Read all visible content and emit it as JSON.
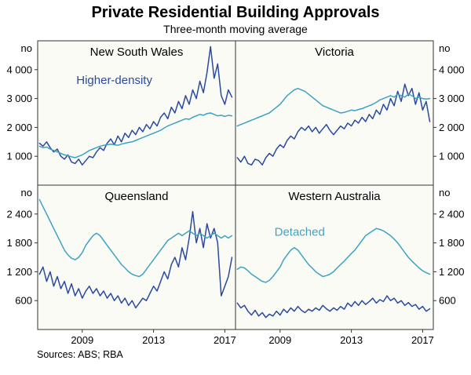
{
  "title": "Private Residential Building Approvals",
  "subtitle": "Three-month moving average",
  "sources": "Sources: ABS; RBA",
  "unit_label": "no",
  "colors": {
    "higher_density": "#2a4a9f",
    "detached": "#3da3c2",
    "axis": "#333333",
    "text": "#000000",
    "panel_bg": "#fbfbf5"
  },
  "chart_data": {
    "type": "line",
    "x_start": 2006.6,
    "x_step": 0.2,
    "x_range": [
      2006.5,
      2017.6
    ],
    "x_ticks": [
      2009,
      2013,
      2017
    ],
    "unit": "no",
    "legend": [
      "Higher-density",
      "Detached"
    ],
    "panels": [
      {
        "title": "New South Wales",
        "ylim": [
          0,
          5000
        ],
        "yticks": [
          1000,
          2000,
          3000,
          4000
        ],
        "annotation": {
          "text": "Higher-density",
          "x": 2010.8,
          "y": 3500,
          "color": "higher_density"
        },
        "series": [
          {
            "name": "Higher-density",
            "color": "higher_density",
            "values": [
              1450,
              1350,
              1500,
              1300,
              1150,
              1250,
              1000,
              900,
              1050,
              800,
              750,
              900,
              700,
              850,
              1000,
              950,
              1150,
              1300,
              1200,
              1450,
              1600,
              1400,
              1700,
              1500,
              1800,
              1650,
              1900,
              1750,
              2000,
              1850,
              2100,
              1950,
              2200,
              2050,
              2350,
              2500,
              2300,
              2700,
              2500,
              2900,
              2650,
              3100,
              2800,
              3300,
              3000,
              3600,
              3200,
              3900,
              4800,
              3700,
              4200,
              3100,
              2800,
              3300,
              3050
            ]
          },
          {
            "name": "Detached",
            "color": "detached",
            "values": [
              1350,
              1300,
              1320,
              1250,
              1200,
              1150,
              1100,
              1050,
              1020,
              980,
              950,
              1000,
              1050,
              1120,
              1200,
              1250,
              1300,
              1350,
              1380,
              1400,
              1420,
              1400,
              1380,
              1420,
              1450,
              1480,
              1500,
              1550,
              1600,
              1650,
              1700,
              1750,
              1800,
              1850,
              1900,
              1980,
              2050,
              2100,
              2150,
              2200,
              2250,
              2300,
              2280,
              2350,
              2400,
              2450,
              2420,
              2480,
              2500,
              2450,
              2400,
              2420,
              2380,
              2420,
              2400
            ]
          }
        ]
      },
      {
        "title": "Victoria",
        "ylim": [
          0,
          5000
        ],
        "yticks": [
          1000,
          2000,
          3000,
          4000
        ],
        "series": [
          {
            "name": "Higher-density",
            "color": "higher_density",
            "values": [
              950,
              800,
              1000,
              750,
              700,
              900,
              850,
              700,
              950,
              1100,
              1000,
              1250,
              1400,
              1300,
              1550,
              1700,
              1600,
              1850,
              2000,
              1900,
              2050,
              1850,
              2000,
              1800,
              1950,
              2100,
              1900,
              1750,
              1900,
              2050,
              1950,
              2150,
              2050,
              2250,
              2150,
              2350,
              2200,
              2450,
              2300,
              2600,
              2450,
              2800,
              2600,
              3000,
              2750,
              3250,
              2900,
              3500,
              3100,
              3350,
              2800,
              3200,
              2600,
              2900,
              2200
            ]
          },
          {
            "name": "Detached",
            "color": "detached",
            "values": [
              2050,
              2100,
              2150,
              2200,
              2250,
              2300,
              2350,
              2400,
              2450,
              2500,
              2600,
              2700,
              2800,
              2950,
              3100,
              3200,
              3300,
              3350,
              3300,
              3250,
              3150,
              3050,
              2950,
              2850,
              2750,
              2700,
              2650,
              2600,
              2550,
              2500,
              2520,
              2560,
              2600,
              2580,
              2620,
              2650,
              2700,
              2750,
              2800,
              2870,
              2950,
              3000,
              3050,
              3100,
              3050,
              3150,
              3100,
              3050,
              3150,
              3100,
              3000,
              3050,
              3000,
              2980,
              3000
            ]
          }
        ]
      },
      {
        "title": "Queensland",
        "ylim": [
          0,
          3000
        ],
        "yticks": [
          600,
          1200,
          1800,
          2400
        ],
        "series": [
          {
            "name": "Higher-density",
            "color": "higher_density",
            "values": [
              1150,
              1300,
              1000,
              1200,
              900,
              1100,
              850,
              1000,
              750,
              950,
              700,
              850,
              650,
              800,
              900,
              750,
              850,
              700,
              800,
              650,
              750,
              600,
              700,
              550,
              650,
              500,
              600,
              450,
              550,
              650,
              600,
              750,
              900,
              800,
              1000,
              1200,
              1050,
              1350,
              1500,
              1300,
              1700,
              1450,
              1900,
              2450,
              1800,
              2100,
              1700,
              2200,
              1900,
              2100,
              1800,
              700,
              900,
              1100,
              1500
            ]
          },
          {
            "name": "Detached",
            "color": "detached",
            "values": [
              2700,
              2550,
              2400,
              2250,
              2100,
              1950,
              1800,
              1650,
              1550,
              1480,
              1450,
              1500,
              1600,
              1750,
              1850,
              1950,
              2000,
              1950,
              1850,
              1750,
              1650,
              1550,
              1450,
              1350,
              1280,
              1200,
              1150,
              1120,
              1100,
              1150,
              1250,
              1350,
              1450,
              1550,
              1650,
              1750,
              1850,
              1900,
              1950,
              2000,
              1950,
              2000,
              2050,
              2000,
              1950,
              2000,
              1950,
              1900,
              1950,
              2000,
              1950,
              1900,
              1950,
              1900,
              1950
            ]
          }
        ]
      },
      {
        "title": "Western Australia",
        "ylim": [
          0,
          3000
        ],
        "yticks": [
          600,
          1200,
          1800,
          2400
        ],
        "annotation": {
          "text": "Detached",
          "x": 2010.1,
          "y": 1950,
          "color": "detached"
        },
        "series": [
          {
            "name": "Higher-density",
            "color": "higher_density",
            "values": [
              550,
              450,
              500,
              380,
              300,
              400,
              280,
              350,
              250,
              320,
              280,
              380,
              300,
              420,
              350,
              450,
              380,
              480,
              400,
              350,
              420,
              380,
              450,
              400,
              500,
              430,
              380,
              450,
              400,
              480,
              420,
              550,
              480,
              580,
              500,
              600,
              520,
              580,
              650,
              550,
              620,
              580,
              700,
              600,
              650,
              550,
              600,
              500,
              560,
              480,
              520,
              420,
              480,
              380,
              430
            ]
          },
          {
            "name": "Detached",
            "color": "detached",
            "values": [
              1250,
              1300,
              1280,
              1220,
              1150,
              1100,
              1050,
              1000,
              980,
              1020,
              1100,
              1200,
              1300,
              1450,
              1550,
              1650,
              1700,
              1650,
              1550,
              1450,
              1350,
              1280,
              1200,
              1150,
              1100,
              1120,
              1150,
              1200,
              1280,
              1350,
              1420,
              1500,
              1580,
              1650,
              1750,
              1850,
              1950,
              2000,
              2050,
              2100,
              2080,
              2050,
              2000,
              1950,
              1880,
              1800,
              1700,
              1600,
              1500,
              1420,
              1350,
              1280,
              1220,
              1180,
              1150
            ]
          }
        ]
      }
    ]
  }
}
